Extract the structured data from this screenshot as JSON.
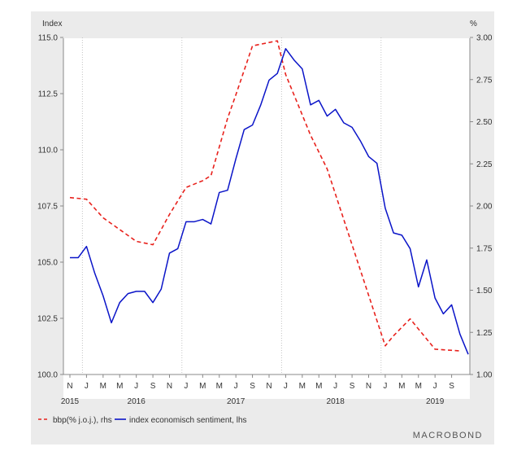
{
  "chart_data": {
    "type": "line",
    "title": "",
    "left_unit": "Index",
    "right_unit": "%",
    "brand": "MACROBOND",
    "left_ylim": [
      100.0,
      115.0
    ],
    "right_ylim": [
      1.0,
      3.0
    ],
    "left_ticks": [
      "115.0",
      "112.5",
      "110.0",
      "107.5",
      "105.0",
      "102.5",
      "100.0"
    ],
    "right_ticks": [
      "3.00",
      "2.75",
      "2.50",
      "2.25",
      "2.00",
      "1.75",
      "1.50",
      "1.25",
      "1.00"
    ],
    "x_month_labels": [
      "N",
      "J",
      "M",
      "M",
      "J",
      "S",
      "N",
      "J",
      "M",
      "M",
      "J",
      "S",
      "N",
      "J",
      "M",
      "M",
      "J",
      "S",
      "N",
      "J",
      "M",
      "M",
      "J",
      "S"
    ],
    "x_year_labels": [
      "2015",
      "2016",
      "2017",
      "2018",
      "2019"
    ],
    "legend_placement": "bottom-left",
    "grid": "vertical dotted at year boundaries",
    "colors": {
      "bbp": "#e8221d",
      "sentiment": "#0a14c8"
    },
    "series": [
      {
        "name": "bbp(% j.o.j.), rhs",
        "axis": "right",
        "style": "dashed",
        "points": [
          [
            "2015-11",
            2.05
          ],
          [
            "2016-01",
            2.04
          ],
          [
            "2016-03",
            1.93
          ],
          [
            "2016-05",
            1.86
          ],
          [
            "2016-07",
            1.79
          ],
          [
            "2016-09",
            1.77
          ],
          [
            "2016-11",
            1.95
          ],
          [
            "2017-01",
            2.11
          ],
          [
            "2017-03",
            2.15
          ],
          [
            "2017-04",
            2.18
          ],
          [
            "2017-06",
            2.52
          ],
          [
            "2017-07",
            2.66
          ],
          [
            "2017-09",
            2.95
          ],
          [
            "2017-11",
            2.97
          ],
          [
            "2017-12",
            2.98
          ],
          [
            "2018-01",
            2.78
          ],
          [
            "2018-04",
            2.42
          ],
          [
            "2018-06",
            2.22
          ],
          [
            "2018-10",
            1.62
          ],
          [
            "2018-12",
            1.32
          ],
          [
            "2019-01",
            1.17
          ],
          [
            "2019-02",
            1.23
          ],
          [
            "2019-04",
            1.33
          ],
          [
            "2019-05",
            1.27
          ],
          [
            "2019-07",
            1.15
          ],
          [
            "2019-10",
            1.14
          ]
        ]
      },
      {
        "name": "index economisch sentiment, lhs",
        "axis": "left",
        "style": "solid",
        "points": [
          [
            "2015-11",
            105.2
          ],
          [
            "2015-12",
            105.2
          ],
          [
            "2016-01",
            105.7
          ],
          [
            "2016-02",
            104.5
          ],
          [
            "2016-03",
            103.5
          ],
          [
            "2016-04",
            102.3
          ],
          [
            "2016-05",
            103.2
          ],
          [
            "2016-06",
            103.6
          ],
          [
            "2016-07",
            103.7
          ],
          [
            "2016-08",
            103.7
          ],
          [
            "2016-09",
            103.2
          ],
          [
            "2016-10",
            103.8
          ],
          [
            "2016-11",
            105.4
          ],
          [
            "2016-12",
            105.6
          ],
          [
            "2017-01",
            106.8
          ],
          [
            "2017-02",
            106.8
          ],
          [
            "2017-03",
            106.9
          ],
          [
            "2017-04",
            106.7
          ],
          [
            "2017-05",
            108.1
          ],
          [
            "2017-06",
            108.2
          ],
          [
            "2017-07",
            109.6
          ],
          [
            "2017-08",
            110.9
          ],
          [
            "2017-09",
            111.1
          ],
          [
            "2017-10",
            112.0
          ],
          [
            "2017-11",
            113.1
          ],
          [
            "2017-12",
            113.4
          ],
          [
            "2018-01",
            114.5
          ],
          [
            "2018-02",
            114.0
          ],
          [
            "2018-03",
            113.6
          ],
          [
            "2018-04",
            112.0
          ],
          [
            "2018-05",
            112.2
          ],
          [
            "2018-06",
            111.5
          ],
          [
            "2018-07",
            111.8
          ],
          [
            "2018-08",
            111.2
          ],
          [
            "2018-09",
            111.0
          ],
          [
            "2018-10",
            110.4
          ],
          [
            "2018-11",
            109.7
          ],
          [
            "2018-12",
            109.4
          ],
          [
            "2019-01",
            107.4
          ],
          [
            "2019-02",
            106.3
          ],
          [
            "2019-03",
            106.2
          ],
          [
            "2019-04",
            105.6
          ],
          [
            "2019-05",
            103.9
          ],
          [
            "2019-06",
            105.1
          ],
          [
            "2019-07",
            103.4
          ],
          [
            "2019-08",
            102.7
          ],
          [
            "2019-09",
            103.1
          ],
          [
            "2019-10",
            101.8
          ],
          [
            "2019-11",
            100.9
          ]
        ]
      }
    ]
  }
}
